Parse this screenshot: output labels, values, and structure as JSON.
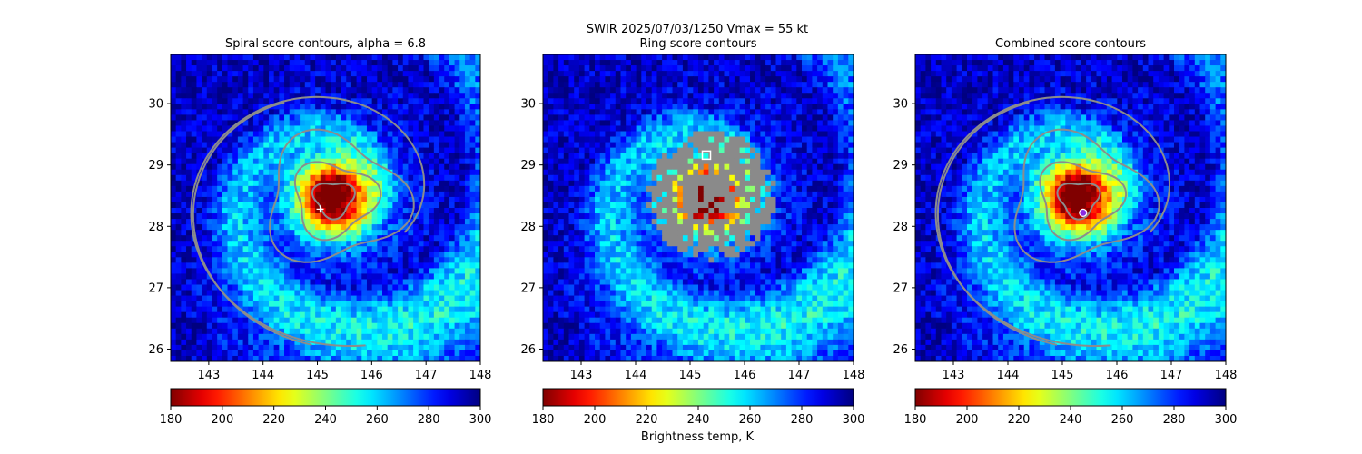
{
  "suptitle": "SWIR  2025/07/03/1250    Vmax = 55 kt",
  "colorbar_label": "Brightness temp, K",
  "chart_data": [
    {
      "type": "heatmap",
      "title": "Spiral score contours, alpha =  6.8",
      "xlim": [
        142.3,
        148.0
      ],
      "ylim": [
        25.8,
        30.8
      ],
      "xticks": [
        "143",
        "144",
        "145",
        "146",
        "147",
        "148"
      ],
      "yticks": [
        "26",
        "27",
        "28",
        "29",
        "30"
      ],
      "colorbar": {
        "range": [
          180,
          300
        ],
        "ticks": [
          "180",
          "200",
          "220",
          "240",
          "260",
          "280",
          "300"
        ],
        "cmap": "jet_r"
      },
      "center_marker": {
        "x": 145.05,
        "y": 28.28,
        "shape": "plus",
        "color": "#ffffff"
      },
      "contours": "spiral"
    },
    {
      "type": "heatmap",
      "title": "Ring score contours",
      "xlim": [
        142.3,
        148.0
      ],
      "ylim": [
        25.8,
        30.8
      ],
      "xticks": [
        "143",
        "144",
        "145",
        "146",
        "147",
        "148"
      ],
      "yticks": [
        "26",
        "27",
        "28",
        "29",
        "30"
      ],
      "colorbar": {
        "range": [
          180,
          300
        ],
        "ticks": [
          "180",
          "200",
          "220",
          "240",
          "260",
          "280",
          "300"
        ],
        "cmap": "jet_r"
      },
      "center_marker": {
        "x": 145.3,
        "y": 29.16,
        "shape": "square",
        "color": "#ffffff"
      },
      "contours": "ring"
    },
    {
      "type": "heatmap",
      "title": "Combined score contours",
      "xlim": [
        142.3,
        148.0
      ],
      "ylim": [
        25.8,
        30.8
      ],
      "xticks": [
        "143",
        "144",
        "145",
        "146",
        "147",
        "148"
      ],
      "yticks": [
        "26",
        "27",
        "28",
        "29",
        "30"
      ],
      "colorbar": {
        "range": [
          180,
          300
        ],
        "ticks": [
          "180",
          "200",
          "220",
          "240",
          "260",
          "280",
          "300"
        ],
        "cmap": "jet_r"
      },
      "center_marker": {
        "x": 145.38,
        "y": 28.22,
        "shape": "circle",
        "color": "#8a2be2"
      },
      "contours": "spiral"
    }
  ]
}
